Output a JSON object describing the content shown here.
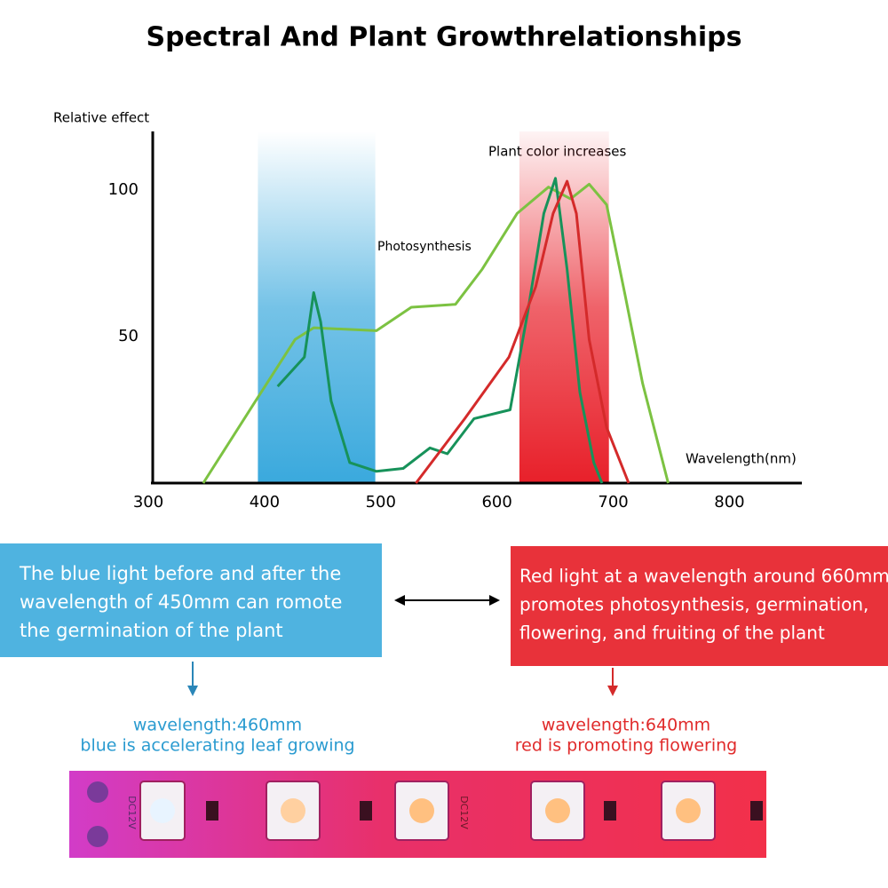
{
  "chart_data": {
    "type": "line",
    "title": "Spectral And Plant  Growthrelationships",
    "y_label": "Relative effect",
    "x_label": "Wavelength(nm)",
    "annotations": [
      "Photosynthesis",
      "Plant color increases"
    ],
    "xlim": [
      300,
      860
    ],
    "xticks": [
      300,
      400,
      500,
      600,
      700,
      800
    ],
    "ylim": [
      0,
      120
    ],
    "yticks": [
      50,
      100
    ],
    "bands": [
      {
        "range": [
          392,
          493
        ],
        "color": "#3aa9dd"
      },
      {
        "range": [
          617,
          694
        ],
        "color": "#e8202a"
      }
    ],
    "series": [
      {
        "color": "#7cc242",
        "x": [
          345,
          390,
          424,
          440,
          494,
          524,
          562,
          585,
          615,
          642,
          661,
          677,
          692,
          708,
          723,
          745
        ],
        "values": [
          0,
          28,
          49,
          53,
          52,
          60,
          61,
          73,
          92,
          101,
          97,
          102,
          95,
          64,
          34,
          0
        ]
      },
      {
        "color": "#17925a",
        "x": [
          409,
          432,
          440,
          446,
          455,
          471,
          494,
          517,
          540,
          555,
          578,
          609,
          624,
          638,
          648,
          658,
          669,
          681,
          688
        ],
        "values": [
          33,
          43,
          65,
          55,
          28,
          7,
          4,
          5,
          12,
          10,
          22,
          25,
          58,
          92,
          104,
          73,
          31,
          7,
          0
        ]
      },
      {
        "color": "#d42a2a",
        "x": [
          528,
          570,
          608,
          631,
          646,
          658,
          666,
          677,
          692,
          711
        ],
        "values": [
          0,
          22,
          43,
          67,
          92,
          103,
          92,
          49,
          19,
          0
        ]
      }
    ]
  },
  "blue_note": {
    "lines": [
      "The blue light before and after the",
      "wavelength of 450mm can romote",
      "the germination of the plant"
    ],
    "wavelength": "wavelength:460mm",
    "effect": "blue is accelerating leaf growing"
  },
  "red_note": {
    "lines": [
      "Red light at a wavelength around 660mm",
      "promotes photosynthesis, germination,",
      "flowering, and fruiting of the plant"
    ],
    "wavelength": "wavelength:640mm",
    "effect": "red is promoting flowering"
  },
  "strip_labels": [
    "DC12V",
    "DC12V"
  ]
}
